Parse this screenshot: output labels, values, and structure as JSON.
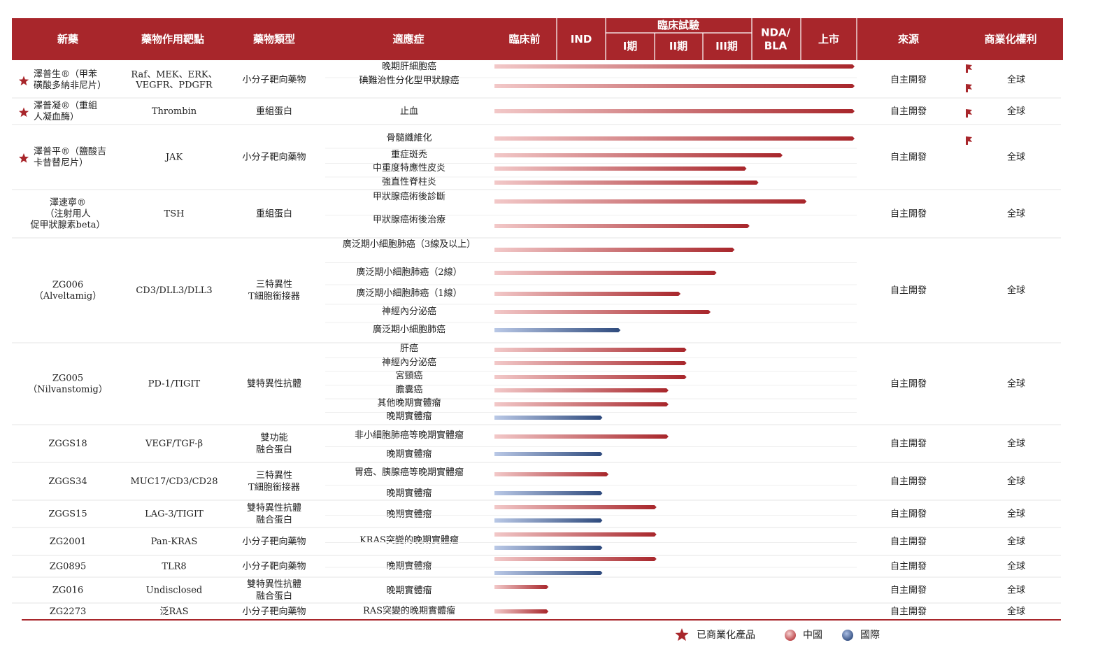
{
  "chart_data": {
    "type": "table",
    "columns": {
      "drug": "新藥",
      "target": "藥物作用靶點",
      "type": "藥物類型",
      "indication": "適應症",
      "preclinical": "臨床前",
      "ind": "IND",
      "trial_group": "臨床試驗",
      "phase1": "I期",
      "phase2": "II期",
      "phase3": "III期",
      "nda": "NDA/\nBLA",
      "market": "上市",
      "source": "來源",
      "rights": "商業化權利"
    },
    "stage_scale": [
      "臨床前",
      "IND",
      "I期",
      "II期",
      "III期",
      "NDA/BLA",
      "上市"
    ],
    "colors": {
      "header": "#a8262b",
      "china_end": "#a8262b",
      "china_start": "#f0c3c3",
      "intl_end": "#2e4a7d",
      "intl_start": "#b7c6e4",
      "star": "#a8262b",
      "rule": "#a8262b"
    },
    "drugs": [
      {
        "name": "澤普生®（甲苯\n磺酸多納非尼片）",
        "commercial": true,
        "target": "Raf、MEK、ERK、\nVEGFR、PDGFR",
        "type": "小分子靶向藥物",
        "source": "自主開發",
        "rights": "全球",
        "indications": [
          {
            "label": "晚期肝細胞癌",
            "region": "china",
            "progress": 6.0,
            "flag": true
          },
          {
            "label": "碘難治性分化型甲狀腺癌",
            "region": "china",
            "progress": 6.0,
            "flag": true
          }
        ]
      },
      {
        "name": "澤普凝®（重組\n人凝血酶）",
        "commercial": true,
        "target": "Thrombin",
        "type": "重組蛋白",
        "source": "自主開發",
        "rights": "全球",
        "indications": [
          {
            "label": "止血",
            "region": "china",
            "progress": 6.0,
            "flag": true
          }
        ]
      },
      {
        "name": "澤普平®（鹽酸吉\n卡昔替尼片）",
        "commercial": true,
        "target": "JAK",
        "type": "小分子靶向藥物",
        "source": "自主開發",
        "rights": "全球",
        "indications": [
          {
            "label": "骨髓纖維化",
            "region": "china",
            "progress": 6.0,
            "flag": true
          },
          {
            "label": "重症斑禿",
            "region": "china",
            "progress": 4.8
          },
          {
            "label": "中重度特應性皮炎",
            "region": "china",
            "progress": 4.2
          },
          {
            "label": "強直性脊柱炎",
            "region": "china",
            "progress": 4.4
          }
        ]
      },
      {
        "name": "澤速寧®\n（注射用人\n促甲狀腺素beta）",
        "commercial": false,
        "target": "TSH",
        "type": "重組蛋白",
        "source": "自主開發",
        "rights": "全球",
        "indications": [
          {
            "label": "甲狀腺癌術後診斷",
            "region": "china",
            "progress": 5.2
          },
          {
            "label": "甲狀腺癌術後治療",
            "region": "china",
            "progress": 4.25
          }
        ]
      },
      {
        "name": "ZG006\n（Alveltamig）",
        "commercial": false,
        "target": "CD3/DLL3/DLL3",
        "type": "三特異性\nT細胞銜接器",
        "source": "自主開發",
        "rights": "全球",
        "indications": [
          {
            "label": "廣泛期小細胞肺癌（3線及以上）",
            "region": "china",
            "progress": 4.0
          },
          {
            "label": "廣泛期小細胞肺癌（2線）",
            "region": "china",
            "progress": 3.7
          },
          {
            "label": "廣泛期小細胞肺癌（1線）",
            "region": "china",
            "progress": 3.1
          },
          {
            "label": "神經內分泌癌",
            "region": "china",
            "progress": 3.6
          },
          {
            "label": "廣泛期小細胞肺癌",
            "region": "intl",
            "progress": 2.1
          }
        ]
      },
      {
        "name": "ZG005\n（Nilvanstomig）",
        "commercial": false,
        "target": "PD-1/TIGIT",
        "type": "雙特異性抗體",
        "source": "自主開發",
        "rights": "全球",
        "indications": [
          {
            "label": "肝癌",
            "region": "china",
            "progress": 3.2
          },
          {
            "label": "神經內分泌癌",
            "region": "china",
            "progress": 3.2
          },
          {
            "label": "宮頸癌",
            "region": "china",
            "progress": 3.2
          },
          {
            "label": "膽囊癌",
            "region": "china",
            "progress": 2.9
          },
          {
            "label": "其他晚期實體瘤",
            "region": "china",
            "progress": 2.9
          },
          {
            "label": "晚期實體瘤",
            "region": "intl",
            "progress": 1.8
          }
        ]
      },
      {
        "name": "ZGGS18",
        "commercial": false,
        "target": "VEGF/TGF-β",
        "type": "雙功能\n融合蛋白",
        "source": "自主開發",
        "rights": "全球",
        "indications": [
          {
            "label": "非小細胞肺癌等晚期實體瘤",
            "region": "china",
            "progress": 2.9
          },
          {
            "label": "晚期實體瘤",
            "region": "intl",
            "progress": 1.8
          }
        ]
      },
      {
        "name": "ZGGS34",
        "commercial": false,
        "target": "MUC17/CD3/CD28",
        "type": "三特異性\nT細胞銜接器",
        "source": "自主開發",
        "rights": "全球",
        "indications": [
          {
            "label": "胃癌、胰腺癌等晚期實體瘤",
            "region": "china",
            "progress": 1.9
          },
          {
            "label": "晚期實體瘤",
            "region": "intl",
            "progress": 1.8
          }
        ]
      },
      {
        "name": "ZGGS15",
        "commercial": false,
        "target": "LAG-3/TIGIT",
        "type": "雙特異性抗體\n融合蛋白",
        "source": "自主開發",
        "rights": "全球",
        "indications": [
          {
            "label": "晚期實體瘤",
            "region": "china",
            "progress": 2.7
          },
          {
            "label": "",
            "region": "intl",
            "progress": 1.8
          }
        ]
      },
      {
        "name": "ZG2001",
        "commercial": false,
        "target": "Pan-KRAS",
        "type": "小分子靶向藥物",
        "source": "自主開發",
        "rights": "全球",
        "indications": [
          {
            "label": "KRAS突變的晚期實體瘤",
            "region": "china",
            "progress": 2.7
          },
          {
            "label": "",
            "region": "intl",
            "progress": 1.8
          }
        ]
      },
      {
        "name": "ZG0895",
        "commercial": false,
        "target": "TLR8",
        "type": "小分子靶向藥物",
        "source": "自主開發",
        "rights": "全球",
        "indications": [
          {
            "label": "晚期實體瘤",
            "region": "china",
            "progress": 2.7
          },
          {
            "label": "",
            "region": "intl",
            "progress": 1.8
          }
        ]
      },
      {
        "name": "ZG016",
        "commercial": false,
        "target": "Undisclosed",
        "type": "雙特異性抗體\n融合蛋白",
        "source": "自主開發",
        "rights": "全球",
        "indications": [
          {
            "label": "晚期實體瘤",
            "region": "china",
            "progress": 0.9
          }
        ]
      },
      {
        "name": "ZG2273",
        "commercial": false,
        "target": "泛RAS",
        "type": "小分子靶向藥物",
        "source": "自主開發",
        "rights": "全球",
        "indications": [
          {
            "label": "RAS突變的晚期實體瘤",
            "region": "china",
            "progress": 0.9
          }
        ]
      }
    ],
    "legend": [
      {
        "symbol": "star",
        "label": "已商業化產品"
      },
      {
        "symbol": "china",
        "label": "中國"
      },
      {
        "symbol": "intl",
        "label": "國際"
      }
    ]
  }
}
